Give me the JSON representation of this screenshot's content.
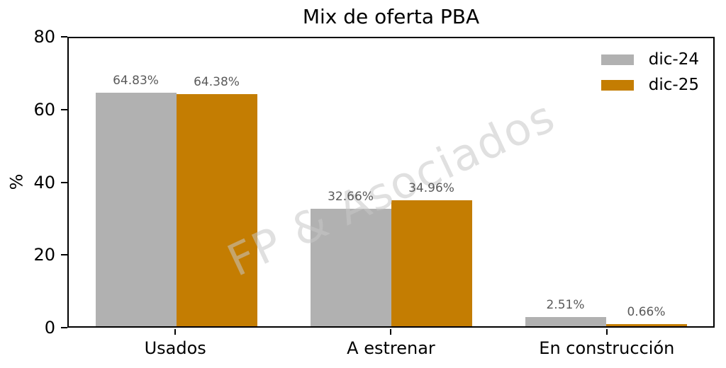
{
  "chart_data": {
    "type": "bar",
    "title": "Mix de oferta PBA",
    "xlabel": "",
    "ylabel": "%",
    "categories": [
      "Usados",
      "A estrenar",
      "En construcción"
    ],
    "series": [
      {
        "name": "dic-24",
        "color": "#b1b1b1",
        "values": [
          64.83,
          32.66,
          2.51
        ],
        "labels": [
          "64.83%",
          "32.66%",
          "2.51%"
        ]
      },
      {
        "name": "dic-25",
        "color": "#c47d02",
        "values": [
          64.38,
          34.96,
          0.66
        ],
        "labels": [
          "64.38%",
          "34.96%",
          "0.66%"
        ]
      }
    ],
    "ylim": [
      0,
      80
    ],
    "yticks": [
      0,
      20,
      40,
      60,
      80
    ],
    "grid": false,
    "legend_position": "upper right",
    "watermark": "FP & Asociados",
    "value_label_color": "#5a5a5a",
    "axis_color": "#000000"
  }
}
